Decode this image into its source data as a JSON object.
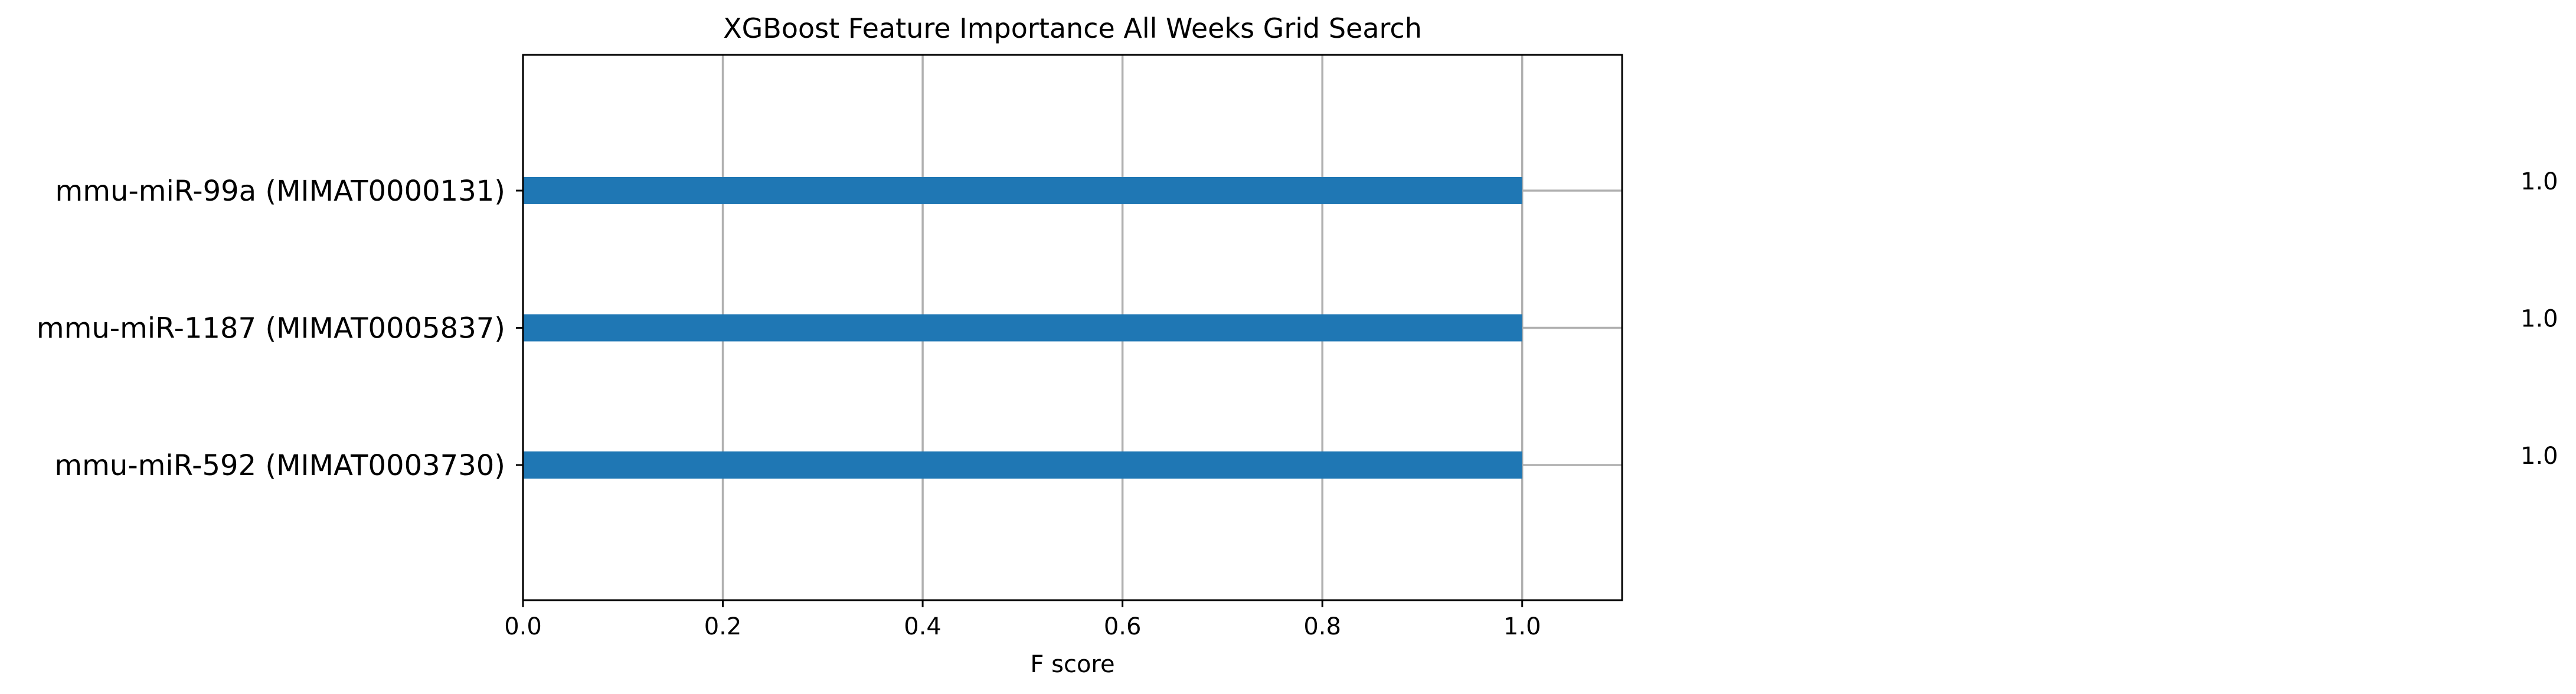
{
  "chart_data": {
    "type": "bar",
    "orientation": "horizontal",
    "title": "XGBoost Feature Importance All Weeks Grid Search",
    "xlabel": "F score",
    "ylabel": "",
    "categories": [
      "mmu-miR-592 (MIMAT0003730)",
      "mmu-miR-1187 (MIMAT0005837)",
      "mmu-miR-99a (MIMAT0000131)"
    ],
    "values": [
      1.0,
      1.0,
      1.0
    ],
    "data_labels": [
      "1.0",
      "1.0",
      "1.0"
    ],
    "xlim": [
      0,
      1.1
    ],
    "xticks": [
      0.0,
      0.2,
      0.4,
      0.6,
      0.8,
      1.0
    ],
    "xtick_labels": [
      "0.0",
      "0.2",
      "0.4",
      "0.6",
      "0.8",
      "1.0"
    ],
    "grid": true,
    "bar_color": "#1f77b4"
  }
}
